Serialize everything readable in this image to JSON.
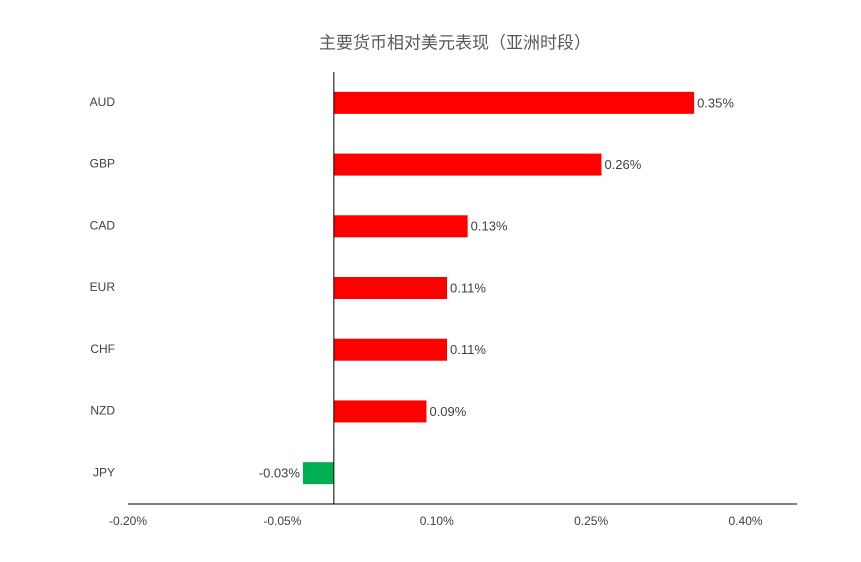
{
  "chart_data": {
    "type": "hbar",
    "title": "主要货币相对美元表现（亚洲时段）",
    "categories": [
      "AUD",
      "GBP",
      "CAD",
      "EUR",
      "CHF",
      "NZD",
      "JPY"
    ],
    "values": [
      0.35,
      0.26,
      0.13,
      0.11,
      0.11,
      0.09,
      -0.03
    ],
    "value_labels": [
      "0.35%",
      "0.26%",
      "0.13%",
      "0.11%",
      "0.11%",
      "0.09%",
      "-0.03%"
    ],
    "colors": [
      "#ff0000",
      "#ff0000",
      "#ff0000",
      "#ff0000",
      "#ff0000",
      "#ff0000",
      "#00b050"
    ],
    "xlim": [
      -0.2,
      0.45
    ],
    "xticks": [
      {
        "value": -0.2,
        "label": "-0.20%"
      },
      {
        "value": -0.05,
        "label": "-0.05%"
      },
      {
        "value": 0.1,
        "label": "0.10%"
      },
      {
        "value": 0.25,
        "label": "0.25%"
      },
      {
        "value": 0.4,
        "label": "0.40%"
      }
    ],
    "grid": false
  }
}
